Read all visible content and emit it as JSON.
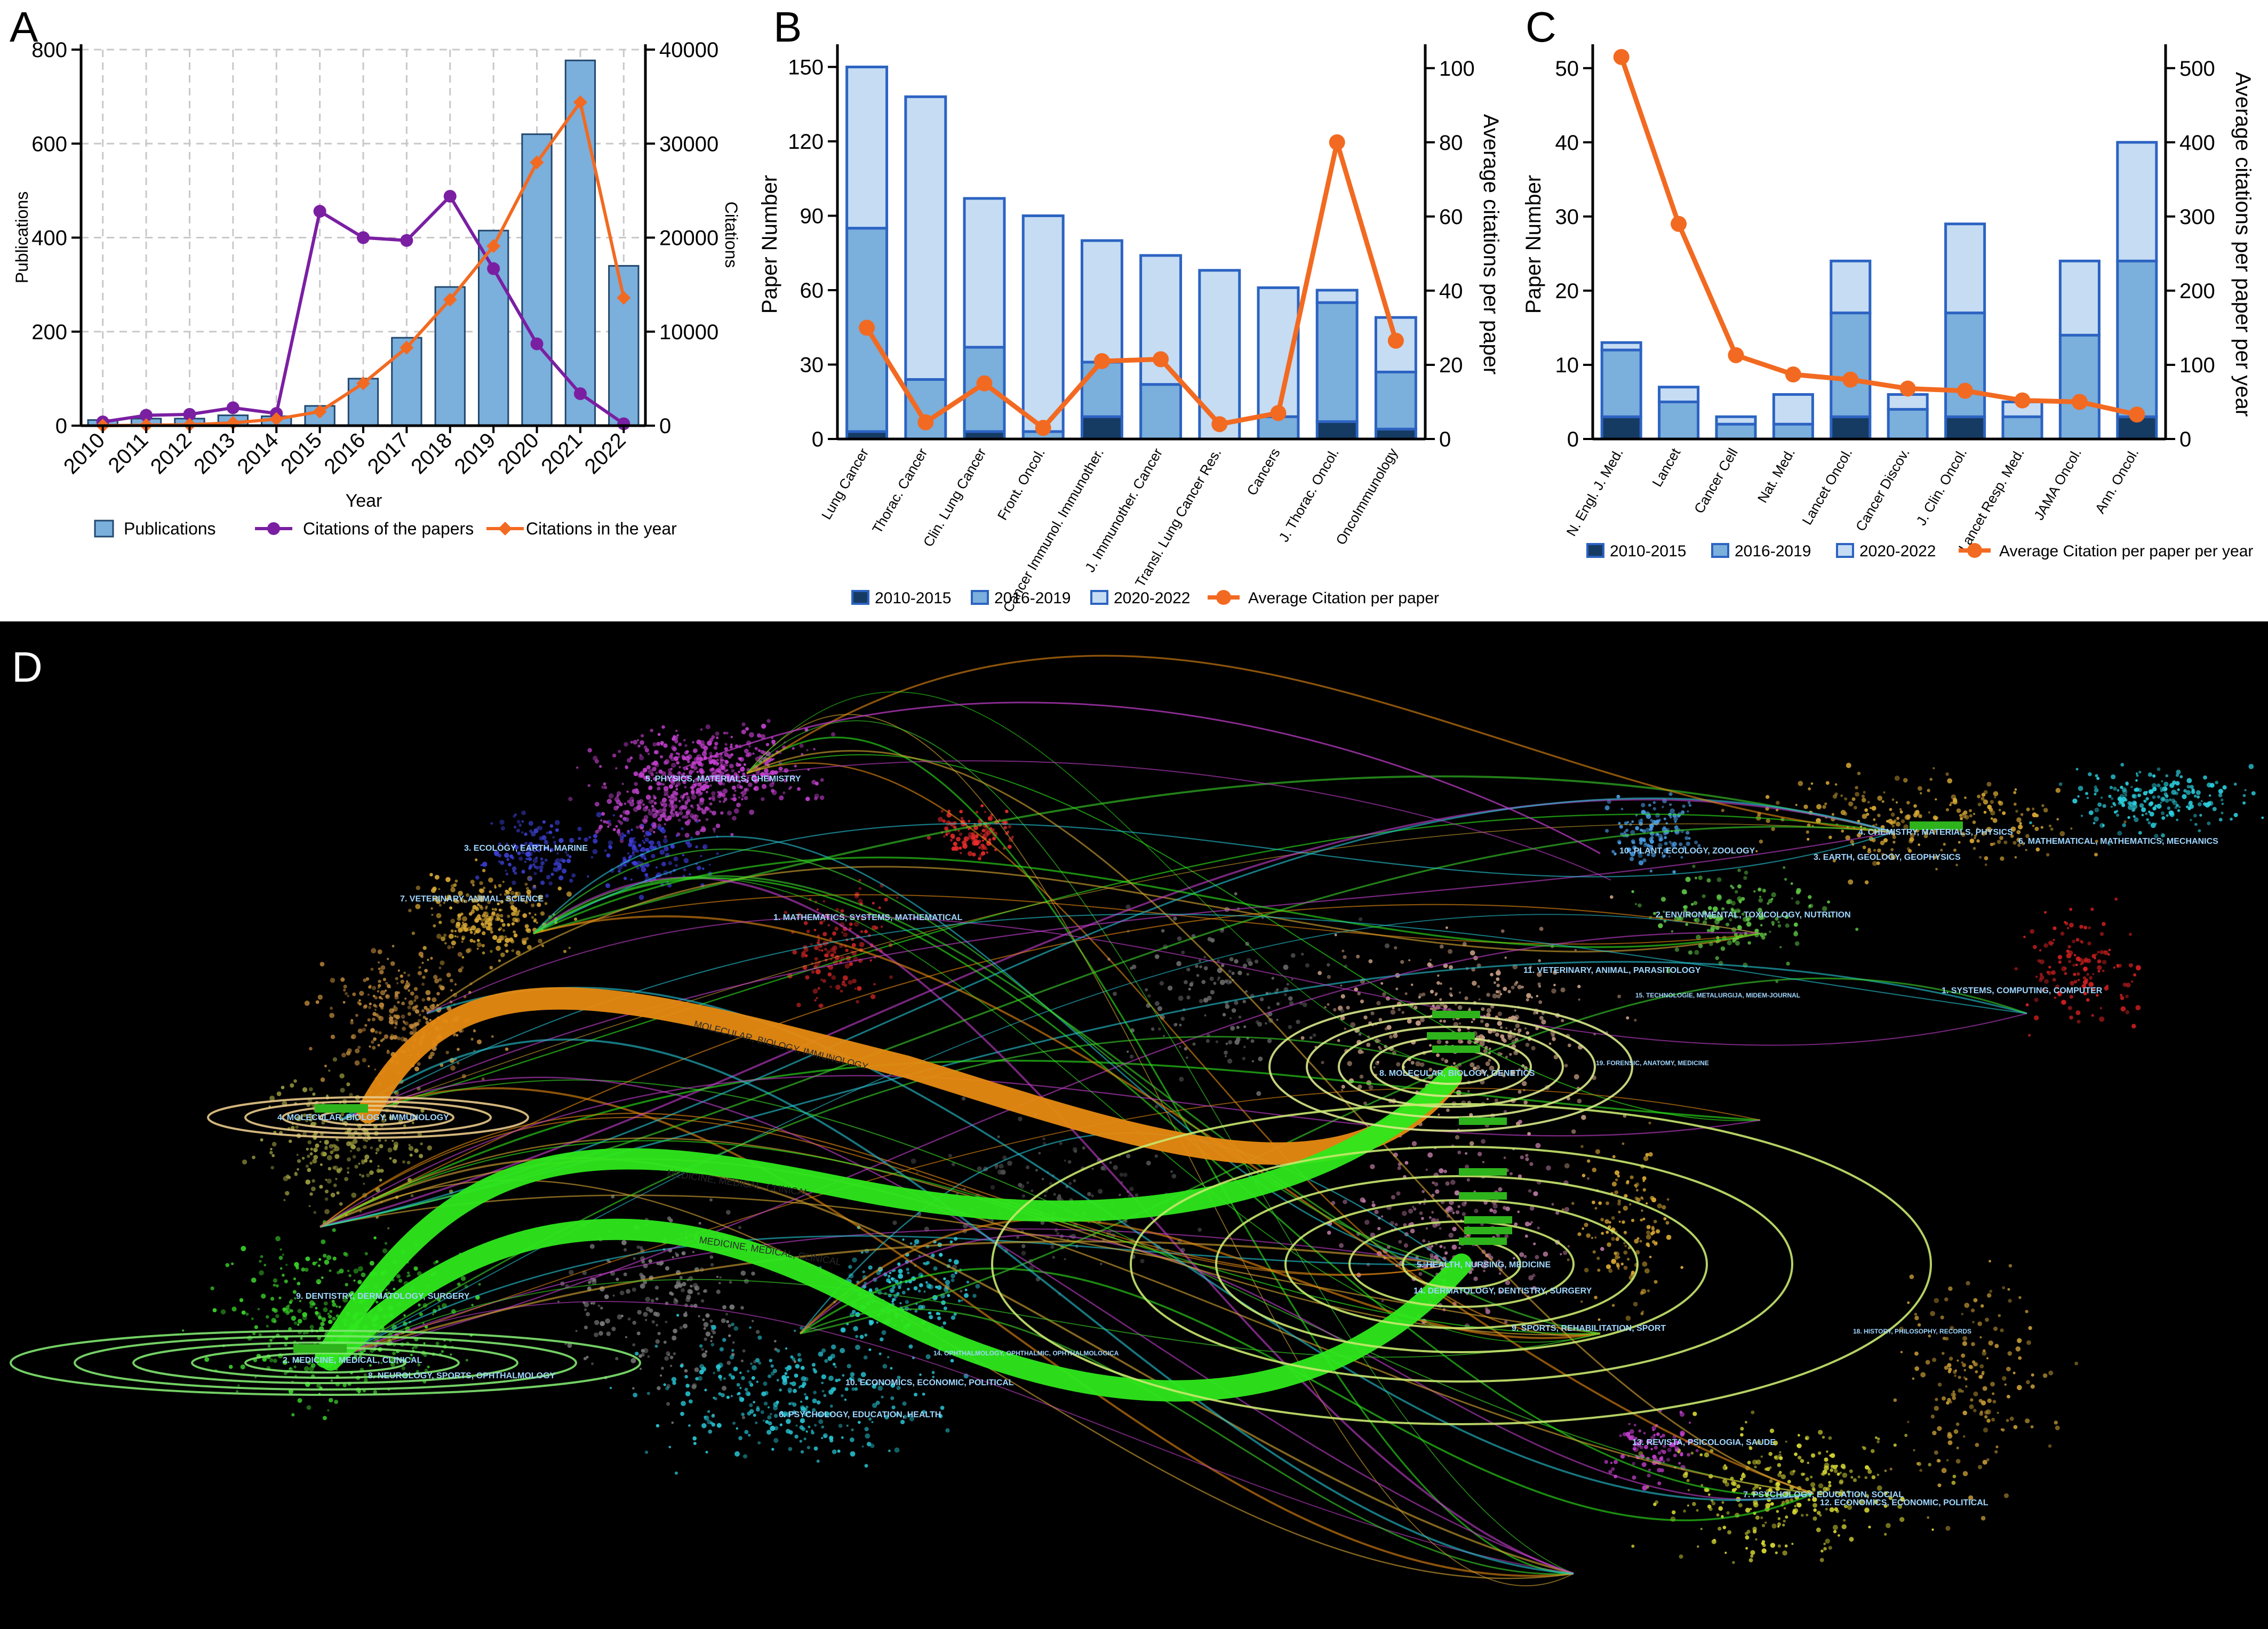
{
  "colors": {
    "dark": "#163b63",
    "mid": "#7bafdc",
    "light": "#c5dcf3",
    "edge": "#2c63c2",
    "orange": "#f26a21",
    "purple": "#7a1fa2",
    "grid": "#c8c8c8",
    "panel_d_bg": "#000000"
  },
  "panel_labels": {
    "a": "A",
    "b": "B",
    "c": "C",
    "d": "D"
  },
  "chart_data": [
    {
      "id": "A",
      "type": "bar+line",
      "categories": [
        "2010",
        "2011",
        "2012",
        "2013",
        "2014",
        "2015",
        "2016",
        "2017",
        "2018",
        "2019",
        "2020",
        "2021",
        "2022"
      ],
      "series": [
        {
          "name": "Publications",
          "type": "bar",
          "axis": "left",
          "values": [
            12,
            15,
            15,
            22,
            20,
            42,
            100,
            187,
            295,
            415,
            620,
            777,
            340
          ]
        },
        {
          "name": "Citations of the papers",
          "type": "line",
          "axis": "right",
          "values": [
            400,
            1100,
            1200,
            1900,
            1300,
            22800,
            20000,
            19700,
            24400,
            16700,
            8700,
            3400,
            200
          ]
        },
        {
          "name": "Citations in the year",
          "type": "line",
          "axis": "right",
          "values": [
            0,
            50,
            100,
            300,
            700,
            1500,
            4500,
            8300,
            13400,
            19100,
            28000,
            34400,
            13600
          ]
        }
      ],
      "xlabel": "Year",
      "ylabel": "Publications",
      "y2label": "Citations",
      "ylim": [
        0,
        800
      ],
      "y2lim": [
        0,
        40000
      ],
      "yticks": [
        "0",
        "200",
        "400",
        "600",
        "800"
      ],
      "y2ticks": [
        "0",
        "10000",
        "20000",
        "30000",
        "40000"
      ],
      "legend": [
        "Publications",
        "Citations of the papers",
        "Citations in the year"
      ],
      "grid": true,
      "legend_position": "bottom"
    },
    {
      "id": "B",
      "type": "stacked-bar+line",
      "categories": [
        "Lung Cancer",
        "Thorac. Cancer",
        "Clin. Lung Cancer",
        "Front. Oncol.",
        "Cancer Immunol. Immunother.",
        "J. Immunother. Cancer",
        "Transl. Lung Cancer Res.",
        "Cancers",
        "J. Thorac. Oncol.",
        "OncoImmunology"
      ],
      "series": [
        {
          "name": "2010-2015",
          "values": [
            3,
            0,
            3,
            0,
            9,
            0,
            0,
            0,
            7,
            4
          ]
        },
        {
          "name": "2016-2019",
          "values": [
            82,
            24,
            34,
            3,
            22,
            22,
            0,
            9,
            48,
            23
          ]
        },
        {
          "name": "2020-2022",
          "values": [
            65,
            114,
            60,
            87,
            49,
            52,
            68,
            52,
            5,
            22
          ]
        },
        {
          "name": "Average Citation per paper",
          "type": "line",
          "axis": "right",
          "values": [
            30,
            4.5,
            15,
            3,
            21,
            21.5,
            4,
            7,
            80,
            26.5
          ]
        }
      ],
      "ylabel": "Paper Number",
      "y2label": "Average citations per paper",
      "ylim": [
        0,
        157
      ],
      "y2lim": [
        0,
        105
      ],
      "yticks": [
        "0",
        "30",
        "60",
        "90",
        "120",
        "150"
      ],
      "y2ticks": [
        "0",
        "20",
        "40",
        "60",
        "80",
        "100"
      ],
      "legend": [
        "2010-2015",
        "2016-2019",
        "2020-2022",
        "Average Citation per paper"
      ],
      "legend_position": "bottom"
    },
    {
      "id": "C",
      "type": "stacked-bar+line",
      "categories": [
        "N. Engl. J. Med.",
        "Lancet",
        "Cancer Cell",
        "Nat. Med.",
        "Lancet Oncol.",
        "Cancer Discov.",
        "J. Clin. Oncol.",
        "Lancet Resp. Med.",
        "JAMA Oncol.",
        "Ann. Oncol."
      ],
      "series": [
        {
          "name": "2010-2015",
          "values": [
            3,
            0,
            0,
            0,
            3,
            0,
            3,
            0,
            0,
            3
          ]
        },
        {
          "name": "2016-2019",
          "values": [
            9,
            5,
            2,
            2,
            14,
            4,
            14,
            3,
            14,
            21
          ]
        },
        {
          "name": "2020-2022",
          "values": [
            1,
            2,
            1,
            4,
            7,
            2,
            12,
            2,
            10,
            16
          ]
        },
        {
          "name": "Average Citation per paper per year",
          "type": "line",
          "axis": "right",
          "values": [
            515,
            290,
            113,
            87,
            80,
            68,
            65,
            52,
            50,
            33
          ]
        }
      ],
      "ylabel": "Paper Number",
      "y2label": "Average citations per paper per year",
      "ylim": [
        0,
        52.5
      ],
      "y2lim": [
        0,
        525
      ],
      "yticks": [
        "0",
        "10",
        "20",
        "30",
        "40",
        "50"
      ],
      "y2ticks": [
        "0",
        "100",
        "200",
        "300",
        "400",
        "500"
      ],
      "legend": [
        "2010-2015",
        "2016-2019",
        "2020-2022",
        "Average Citation per paper per year"
      ],
      "legend_position": "bottom"
    }
  ],
  "overlay": {
    "left_clusters": [
      {
        "text": "5. PHYSICS, MATERIALS, CHEMISTRY",
        "color": "#9fd6ff"
      },
      {
        "text": "3. ECOLOGY, EARTH, MARINE",
        "color": "#9fd6ff"
      },
      {
        "text": "7. VETERINARY, ANIMAL, SCIENCE",
        "color": "#9fd6ff"
      },
      {
        "text": "1. MATHEMATICS, SYSTEMS, MATHEMATICAL",
        "color": "#9fd6ff"
      },
      {
        "text": "4. MOLECULAR, BIOLOGY, IMMUNOLOGY",
        "color": "#9fd6ff"
      },
      {
        "text": "9. DENTISTRY, DERMATOLOGY, SURGERY",
        "color": "#9fd6ff"
      },
      {
        "text": "2. MEDICINE, MEDICAL, CLINICAL",
        "color": "#9fd6ff"
      },
      {
        "text": "8. NEUROLOGY, SPORTS, OPHTHALMOLOGY",
        "color": "#9fd6ff"
      },
      {
        "text": "10. ECONOMICS, ECONOMIC, POLITICAL",
        "color": "#9fd6ff"
      },
      {
        "text": "6. PSYCHOLOGY, EDUCATION, HEALTH",
        "color": "#9fd6ff"
      },
      {
        "text": "14. OPHTHALMOLOGY, OPHTHALMIC, OPHTHALMOLOGICA",
        "color": "#9fd6ff"
      }
    ],
    "right_clusters": [
      {
        "text": "10. PLANT, ECOLOGY, ZOOLOGY",
        "color": "#9fd6ff"
      },
      {
        "text": "4. CHEMISTRY, MATERIALS, PHYSICS",
        "color": "#9fd6ff"
      },
      {
        "text": "3. EARTH, GEOLOGY, GEOPHYSICS",
        "color": "#9fd6ff"
      },
      {
        "text": "6. MATHEMATICAL, MATHEMATICS, MECHANICS",
        "color": "#9fd6ff"
      },
      {
        "text": "2. ENVIRONMENTAL, TOXICOLOGY, NUTRITION",
        "color": "#9fd6ff"
      },
      {
        "text": "11. VETERINARY, ANIMAL, PARASITOLOGY",
        "color": "#9fd6ff"
      },
      {
        "text": "15. TECHNOLOGIE, METALURGIJA, MIDEM-JOURNAL",
        "color": "#9fd6ff"
      },
      {
        "text": "1. SYSTEMS, COMPUTING, COMPUTER",
        "color": "#9fd6ff"
      },
      {
        "text": "8. MOLECULAR, BIOLOGY, GENETICS",
        "color": "#9fd6ff"
      },
      {
        "text": "19. FORENSIC, ANATOMY, MEDICINE",
        "color": "#9fd6ff"
      },
      {
        "text": "5. HEALTH, NURSING, MEDICINE",
        "color": "#9fd6ff"
      },
      {
        "text": "14. DERMATOLOGY, DENTISTRY, SURGERY",
        "color": "#9fd6ff"
      },
      {
        "text": "9. SPORTS, REHABILITATION, SPORT",
        "color": "#9fd6ff"
      },
      {
        "text": "18. HISTORY, PHILOSOPHY, RECORDS",
        "color": "#9fd6ff"
      },
      {
        "text": "13. REVISTA, PSICOLOGIA, SAUDE",
        "color": "#9fd6ff"
      },
      {
        "text": "7. PSYCHOLOGY, EDUCATION, SOCIAL",
        "color": "#9fd6ff"
      },
      {
        "text": "12. ECONOMICS, ECONOMIC, POLITICAL",
        "color": "#9fd6ff"
      }
    ],
    "flows": [
      {
        "text": "MOLECULAR, BIOLOGY, IMMUNOLOGY",
        "color": "#e68a12"
      },
      {
        "text": "MEDICINE, MEDICAL, CLINICAL",
        "color": "#2ee81c"
      },
      {
        "text": "MEDICINE, MEDICAL, CLINICAL",
        "color": "#2ee81c"
      }
    ]
  }
}
